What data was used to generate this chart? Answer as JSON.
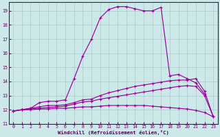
{
  "xlabel": "Windchill (Refroidissement éolien,°C)",
  "background_color": "#cce8e8",
  "line_color": "#990099",
  "grid_color": "#aacccc",
  "xlim": [
    -0.5,
    23.5
  ],
  "ylim": [
    11,
    19.6
  ],
  "yticks": [
    11,
    12,
    13,
    14,
    15,
    16,
    17,
    18,
    19
  ],
  "xticks": [
    0,
    1,
    2,
    3,
    4,
    5,
    6,
    7,
    8,
    9,
    10,
    11,
    12,
    13,
    14,
    15,
    16,
    17,
    18,
    19,
    20,
    21,
    22,
    23
  ],
  "curves": [
    {
      "x": [
        0,
        1,
        2,
        3,
        4,
        5,
        6,
        7,
        8,
        9,
        10,
        11,
        12,
        13,
        14,
        15,
        16,
        17,
        18,
        19,
        20,
        21,
        22
      ],
      "y": [
        11.9,
        12.0,
        12.1,
        12.5,
        12.6,
        12.6,
        12.7,
        14.2,
        15.8,
        17.0,
        18.5,
        19.1,
        19.3,
        19.3,
        19.15,
        19.0,
        19.0,
        19.25,
        14.4,
        14.5,
        14.2,
        13.9,
        13.1
      ]
    },
    {
      "x": [
        0,
        1,
        2,
        3,
        4,
        5,
        6,
        7,
        8,
        9,
        10,
        11,
        12,
        13,
        14,
        15,
        16,
        17,
        18,
        19,
        20,
        21,
        22,
        23
      ],
      "y": [
        11.9,
        12.0,
        12.1,
        12.2,
        12.3,
        12.3,
        12.35,
        12.5,
        12.7,
        12.75,
        13.0,
        13.2,
        13.35,
        13.5,
        13.65,
        13.75,
        13.85,
        13.95,
        14.05,
        14.1,
        14.1,
        14.2,
        13.3,
        11.5
      ]
    },
    {
      "x": [
        0,
        1,
        2,
        3,
        4,
        5,
        6,
        7,
        8,
        9,
        10,
        11,
        12,
        13,
        14,
        15,
        16,
        17,
        18,
        19,
        20,
        21,
        22,
        23
      ],
      "y": [
        11.9,
        12.0,
        12.05,
        12.1,
        12.15,
        12.2,
        12.25,
        12.4,
        12.55,
        12.6,
        12.75,
        12.85,
        12.95,
        13.05,
        13.15,
        13.25,
        13.35,
        13.45,
        13.55,
        13.65,
        13.7,
        13.65,
        13.0,
        11.5
      ]
    },
    {
      "x": [
        0,
        1,
        2,
        3,
        4,
        5,
        6,
        7,
        8,
        9,
        10,
        11,
        12,
        13,
        14,
        15,
        16,
        17,
        18,
        19,
        20,
        21,
        22,
        23
      ],
      "y": [
        11.9,
        12.0,
        12.0,
        12.05,
        12.05,
        12.1,
        12.1,
        12.15,
        12.2,
        12.2,
        12.25,
        12.3,
        12.3,
        12.3,
        12.3,
        12.3,
        12.25,
        12.2,
        12.15,
        12.1,
        12.05,
        11.95,
        11.8,
        11.5
      ]
    }
  ]
}
